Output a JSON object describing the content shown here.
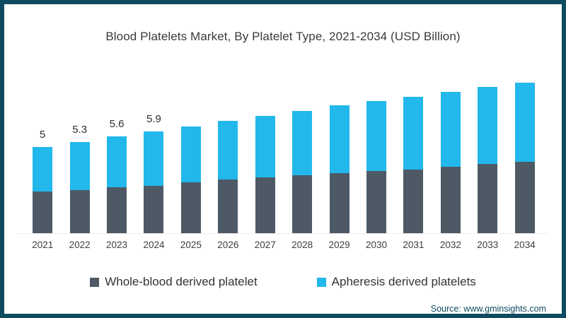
{
  "title": "Blood Platelets Market, By Platelet Type, 2021-2034 (USD Billion)",
  "source": "Source: www.gminsights.com",
  "colors": {
    "frame_border": "#0e4a60",
    "whole_blood": "#4d5a66",
    "apheresis": "#22b8eb",
    "axis_line": "#ececec",
    "title_text": "#3a3a3a",
    "source_text": "#0f4a5f"
  },
  "chart_data": {
    "type": "bar",
    "stacked": true,
    "title": "Blood Platelets Market, By Platelet Type, 2021-2034 (USD Billion)",
    "xlabel": "",
    "ylabel": "",
    "grid": false,
    "legend_position": "bottom",
    "ylim": [
      0,
      9
    ],
    "categories": [
      "2021",
      "2022",
      "2023",
      "2024",
      "2025",
      "2026",
      "2027",
      "2028",
      "2029",
      "2030",
      "2031",
      "2032",
      "2033",
      "2034"
    ],
    "series": [
      {
        "name": "Whole-blood derived platelet",
        "color": "#4d5a66",
        "values": [
          2.4,
          2.5,
          2.65,
          2.75,
          2.95,
          3.1,
          3.25,
          3.35,
          3.5,
          3.6,
          3.7,
          3.85,
          4.0,
          4.15
        ]
      },
      {
        "name": "Apheresis derived platelets",
        "color": "#22b8eb",
        "values": [
          2.6,
          2.8,
          2.95,
          3.15,
          3.25,
          3.4,
          3.55,
          3.75,
          3.9,
          4.05,
          4.2,
          4.35,
          4.5,
          4.6
        ]
      }
    ],
    "totals": [
      5,
      5.3,
      5.6,
      5.9,
      6.2,
      6.5,
      6.8,
      7.1,
      7.4,
      7.65,
      7.9,
      8.2,
      8.5,
      8.75
    ],
    "total_labels": [
      "5",
      "5.3",
      "5.6",
      "5.9",
      "",
      "",
      "",
      "",
      "",
      "",
      "",
      "",
      "",
      ""
    ]
  },
  "legend": {
    "items": [
      {
        "label": "Whole-blood derived platelet",
        "color": "#4d5a66"
      },
      {
        "label": "Apheresis derived platelets",
        "color": "#22b8eb"
      }
    ]
  }
}
